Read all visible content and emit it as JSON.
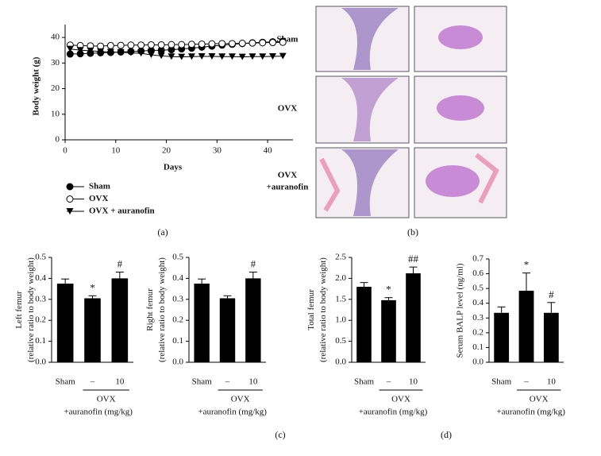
{
  "panel_labels": [
    "(a)",
    "(b)",
    "(c)",
    "(d)"
  ],
  "histology": {
    "rows": [
      [
        "Sham"
      ],
      [
        "OVX"
      ],
      [
        "OVX",
        "+auranofin"
      ]
    ]
  },
  "chart_data": [
    {
      "type": "line",
      "xlabel": "Days",
      "ylabel": "Body weight (g)",
      "x": [
        1,
        3,
        5,
        7,
        9,
        11,
        13,
        15,
        17,
        19,
        21,
        23,
        25,
        27,
        29,
        31,
        33,
        35,
        37,
        39,
        41,
        43
      ],
      "xlim": [
        0,
        45
      ],
      "xticks": [
        0,
        10,
        20,
        30,
        40
      ],
      "ylim": [
        0,
        45
      ],
      "yticks": [
        0,
        10,
        20,
        30,
        40
      ],
      "series": [
        {
          "name": "Sham",
          "color": "#000000",
          "marker": "circle-filled",
          "values": [
            33.5,
            33.6,
            33.8,
            34,
            34.1,
            34.3,
            34.5,
            34.7,
            34.9,
            35,
            35.2,
            35.5,
            35.8,
            36.2,
            36.6,
            37,
            37.3,
            37.6,
            37.9,
            38.1,
            38.3,
            38.5
          ]
        },
        {
          "name": "OVX",
          "color": "#000000",
          "marker": "circle-open",
          "values": [
            37,
            36.8,
            36.7,
            36.6,
            36.8,
            36.9,
            37,
            37,
            37.1,
            37.1,
            37.2,
            37.2,
            37.3,
            37.4,
            37.5,
            37.6,
            37.6,
            37.7,
            37.8,
            37.9,
            38,
            38.1
          ]
        },
        {
          "name": "OVX + auranofin",
          "color": "#000000",
          "marker": "triangle-down",
          "values": [
            35.5,
            35,
            34.8,
            34.5,
            34.3,
            34.2,
            34,
            33.8,
            33.2,
            32.8,
            32.5,
            32.4,
            32.5,
            32.6,
            32.6,
            32.5,
            32.5,
            32.4,
            32.5,
            32.5,
            32.6,
            32.7
          ]
        }
      ]
    },
    {
      "type": "bar",
      "ylabel": [
        "Left femur",
        "(relative ratio to body weight)"
      ],
      "categories": [
        "Sham",
        "–",
        "10"
      ],
      "values": [
        0.375,
        0.305,
        0.4
      ],
      "errors": [
        0.022,
        0.012,
        0.03
      ],
      "color": "#000000",
      "ylim": [
        0,
        0.5
      ],
      "yticks": [
        {
          "value": 0,
          "label": "0.0"
        },
        0.1,
        0.2,
        0.3,
        0.4,
        0.5
      ],
      "annotations": [
        {
          "index": 1,
          "text": "*"
        },
        {
          "index": 2,
          "text": "#"
        }
      ],
      "group_label": "OVX",
      "group_sublabel": "+auranofin (mg/kg)"
    },
    {
      "type": "bar",
      "ylabel": [
        "Right femur",
        "(relative ratio to body weight)"
      ],
      "categories": [
        "Sham",
        "–",
        "10"
      ],
      "values": [
        0.375,
        0.305,
        0.4
      ],
      "errors": [
        0.022,
        0.012,
        0.03
      ],
      "color": "#000000",
      "ylim": [
        0,
        0.5
      ],
      "yticks": [
        {
          "value": 0,
          "label": "0.0"
        },
        0.1,
        0.2,
        0.3,
        0.4,
        0.5
      ],
      "annotations": [
        {
          "index": 2,
          "text": "#"
        }
      ],
      "group_label": "OVX",
      "group_sublabel": "+auranofin (mg/kg)"
    },
    {
      "type": "bar",
      "ylabel": [
        "Total femur",
        "(relative ratio to body weight)"
      ],
      "categories": [
        "Sham",
        "–",
        "10"
      ],
      "values": [
        1.8,
        1.48,
        2.12
      ],
      "errors": [
        0.1,
        0.06,
        0.15
      ],
      "color": "#000000",
      "ylim": [
        0,
        2.5
      ],
      "yticks": [
        {
          "value": 0,
          "label": "0.0"
        },
        0.5,
        {
          "value": 1,
          "label": "1.0"
        },
        1.5,
        {
          "value": 2,
          "label": "2.0"
        },
        2.5
      ],
      "annotations": [
        {
          "index": 1,
          "text": "*"
        },
        {
          "index": 2,
          "text": "##"
        }
      ],
      "group_label": "OVX",
      "group_sublabel": "+auranofin (mg/kg)"
    },
    {
      "type": "bar",
      "ylabel": [
        "Serum BALP level (ng/ml)"
      ],
      "categories": [
        "Sham",
        "–",
        "10"
      ],
      "values": [
        0.335,
        0.485,
        0.335
      ],
      "errors": [
        0.04,
        0.12,
        0.07
      ],
      "color": "#000000",
      "ylim": [
        0,
        0.7
      ],
      "yticks": [
        {
          "value": 0,
          "label": "0.0"
        },
        0.1,
        0.2,
        0.3,
        0.4,
        0.5,
        0.6,
        0.7
      ],
      "annotations": [
        {
          "index": 1,
          "text": "*"
        },
        {
          "index": 2,
          "text": "#"
        }
      ],
      "group_label": "OVX",
      "group_sublabel": "+auranofin (mg/kg)"
    }
  ]
}
